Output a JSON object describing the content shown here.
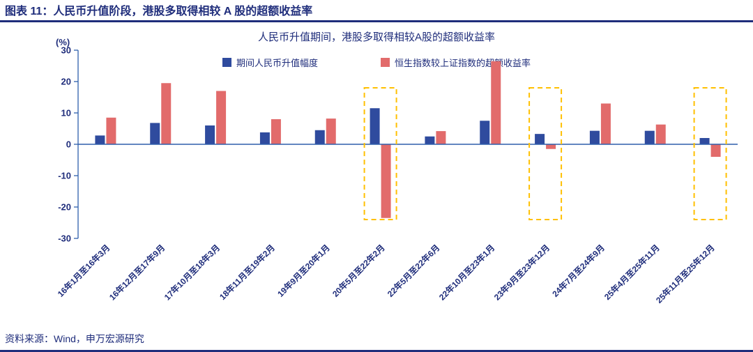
{
  "header": {
    "title": "图表 11：人民币升值阶段，港股多取得相较 A 股的超额收益率"
  },
  "footer": {
    "source": "资料来源：Wind，申万宏源研究"
  },
  "colors": {
    "navy_text": "#1F2D7B",
    "blue_bar": "#2F4B9E",
    "red_bar": "#E26B6B",
    "axis": "#2E5FAC",
    "highlight": "#FFC000"
  },
  "chart_data": {
    "type": "bar",
    "title": "人民币升值期间，港股多取得相较A股的超额收益率",
    "unit_label": "(%)",
    "ylim": [
      -30,
      30
    ],
    "yticks": [
      30,
      20,
      10,
      0,
      -10,
      -20,
      -30
    ],
    "grid": false,
    "legend_position": "top-center",
    "categories": [
      "16年1月至16年3月",
      "16年12月至17年9月",
      "17年10月至18年3月",
      "18年11月至19年2月",
      "19年9月至20年1月",
      "20年5月至22年2月",
      "22年5月至22年6月",
      "22年10月至23年1月",
      "23年9月至23年12月",
      "24年7月至24年9月",
      "25年4月至25年11月",
      "25年11月至25年12月"
    ],
    "series": [
      {
        "name": "期间人民币升值幅度",
        "color": "#2F4B9E",
        "values": [
          2.8,
          6.8,
          6.0,
          3.8,
          4.5,
          11.5,
          2.5,
          7.5,
          3.3,
          4.3,
          4.3,
          2.0
        ]
      },
      {
        "name": "恒生指数较上证指数的超额收益率",
        "color": "#E26B6B",
        "values": [
          8.5,
          19.5,
          17.0,
          8.0,
          8.2,
          -23.5,
          4.2,
          26.5,
          -1.5,
          13.0,
          6.3,
          -4.0
        ]
      }
    ],
    "highlighted_categories": [
      5,
      8,
      11
    ],
    "highlight_color": "#FFC000",
    "highlight_box": {
      "top": 18,
      "bottom": -24
    },
    "axis_color": "#2E5FAC"
  }
}
